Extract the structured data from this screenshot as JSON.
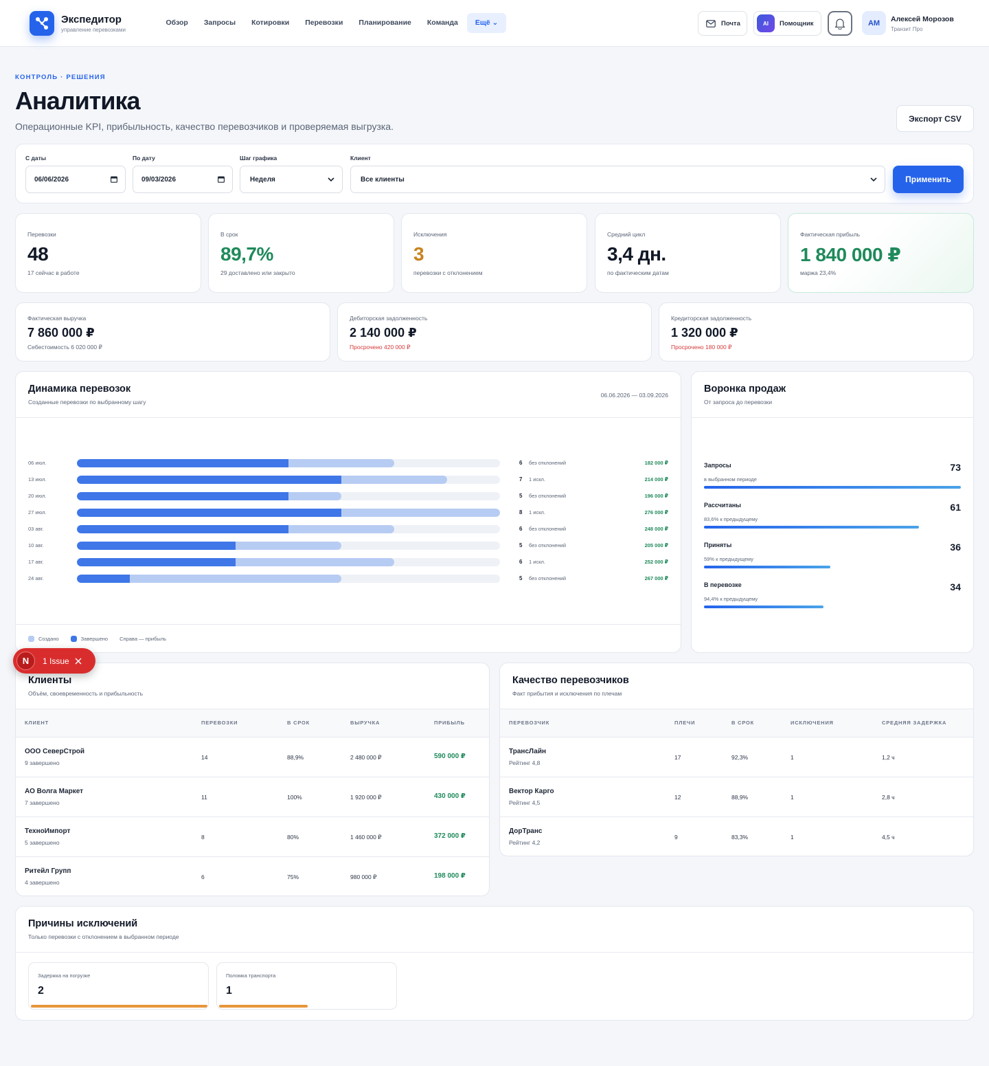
{
  "header": {
    "brand_name": "Экспедитор",
    "brand_sub": "управление перевозками",
    "nav": [
      "Обзор",
      "Запросы",
      "Котировки",
      "Перевозки",
      "Планирование",
      "Команда"
    ],
    "more_label": "Ещё ⌄",
    "mail_label": "Почта",
    "ai_badge": "AI",
    "assistant_label": "Помощник",
    "user_initials": "АМ",
    "user_name": "Алексей Морозов",
    "user_company": "Транзит Про"
  },
  "page": {
    "eyebrow": "КОНТРОЛЬ · РЕШЕНИЯ",
    "title": "Аналитика",
    "subtitle": "Операционные KPI, прибыльность, качество перевозчиков и проверяемая выгрузка.",
    "export_label": "Экспорт CSV"
  },
  "filters": {
    "from_label": "С даты",
    "from_value": "06/06/2026",
    "to_label": "По дату",
    "to_value": "09/03/2026",
    "step_label": "Шаг графика",
    "step_value": "Неделя",
    "client_label": "Клиент",
    "client_value": "Все клиенты",
    "apply_label": "Применить"
  },
  "kpis": [
    {
      "label": "Перевозки",
      "value": "48",
      "sub": "17 сейчас в работе"
    },
    {
      "label": "В срок",
      "value": "89,7%",
      "sub": "29 доставлено или закрыто"
    },
    {
      "label": "Исключения",
      "value": "3",
      "sub": "перевозки с отклонением"
    },
    {
      "label": "Средний цикл",
      "value": "3,4 дн.",
      "sub": "по фактическим датам"
    },
    {
      "label": "Фактическая прибыль",
      "value": "1 840 000 ₽",
      "sub": "маржа 23,4%"
    }
  ],
  "finance": [
    {
      "label": "Фактическая выручка",
      "value": "7 860 000 ₽",
      "sub": "Себестоимость 6 020 000 ₽"
    },
    {
      "label": "Дебиторская задолженность",
      "value": "2 140 000 ₽",
      "sub": "Просрочено 420 000 ₽"
    },
    {
      "label": "Кредиторская задолженность",
      "value": "1 320 000 ₽",
      "sub": "Просрочено 180 000 ₽"
    }
  ],
  "dynamics": {
    "title": "Динамика перевозок",
    "subtitle": "Созданные перевозки по выбранному шагу",
    "range": "06.06.2026 — 03.09.2026",
    "legend_created": "Создано",
    "legend_done": "Завершено",
    "legend_note": "Справа — прибыль"
  },
  "chart_data": {
    "type": "bar",
    "categories": [
      "06 июл.",
      "13 июл.",
      "20 июл.",
      "27 июл.",
      "03 авг.",
      "10 авг.",
      "17 авг.",
      "24 авг."
    ],
    "series": [
      {
        "name": "Создано",
        "values": [
          6,
          7,
          5,
          8,
          6,
          5,
          6,
          5
        ]
      },
      {
        "name": "Завершено",
        "values": [
          4,
          5,
          4,
          5,
          4,
          3,
          3,
          1
        ]
      }
    ],
    "row_counts": [
      "6",
      "7",
      "5",
      "8",
      "6",
      "5",
      "6",
      "5"
    ],
    "row_exceptions": [
      "без отклонений",
      "1 искл.",
      "без отклонений",
      "1 искл.",
      "без отклонений",
      "без отклонений",
      "1 искл.",
      "без отклонений"
    ],
    "row_profit": [
      "182 000 ₽",
      "214 000 ₽",
      "196 000 ₽",
      "276 000 ₽",
      "248 000 ₽",
      "205 000 ₽",
      "252 000 ₽",
      "267 000 ₽"
    ],
    "xmax": 8
  },
  "funnel": {
    "title": "Воронка продаж",
    "subtitle": "От запроса до перевозки",
    "stages": [
      {
        "name": "Запросы",
        "value": "73",
        "sub": "в выбранном периоде",
        "ratio": 1.0
      },
      {
        "name": "Рассчитаны",
        "value": "61",
        "sub": "83,6% к предыдущему",
        "ratio": 0.836
      },
      {
        "name": "Приняты",
        "value": "36",
        "sub": "59% к предыдущему",
        "ratio": 0.493
      },
      {
        "name": "В перевозке",
        "value": "34",
        "sub": "94,4% к предыдущему",
        "ratio": 0.466
      }
    ]
  },
  "clients": {
    "title": "Клиенты",
    "subtitle": "Объём, своевременность и прибыльность",
    "headers": [
      "КЛИЕНТ",
      "ПЕРЕВОЗКИ",
      "В СРОК",
      "ВЫРУЧКА",
      "ПРИБЫЛЬ"
    ],
    "rows": [
      {
        "name": "ООО СеверСтрой",
        "sub": "9 завершено",
        "count": "14",
        "ontime": "88,9%",
        "revenue": "2 480 000 ₽",
        "profit": "590 000 ₽"
      },
      {
        "name": "АО Волга Маркет",
        "sub": "7 завершено",
        "count": "11",
        "ontime": "100%",
        "revenue": "1 920 000 ₽",
        "profit": "430 000 ₽"
      },
      {
        "name": "ТехноИмпорт",
        "sub": "5 завершено",
        "count": "8",
        "ontime": "80%",
        "revenue": "1 460 000 ₽",
        "profit": "372 000 ₽"
      },
      {
        "name": "Ритейл Групп",
        "sub": "4 завершено",
        "count": "6",
        "ontime": "75%",
        "revenue": "980 000 ₽",
        "profit": "198 000 ₽"
      }
    ]
  },
  "carriers": {
    "title": "Качество перевозчиков",
    "subtitle": "Факт прибытия и исключения по плечам",
    "headers": [
      "ПЕРЕВОЗЧИК",
      "ПЛЕЧИ",
      "В СРОК",
      "ИСКЛЮЧЕНИЯ",
      "СРЕДНЯЯ ЗАДЕРЖКА"
    ],
    "rows": [
      {
        "name": "ТрансЛайн",
        "sub": "Рейтинг 4,8",
        "legs": "17",
        "ontime": "92,3%",
        "exceptions": "1",
        "delay": "1,2 ч"
      },
      {
        "name": "Вектор Карго",
        "sub": "Рейтинг 4,5",
        "legs": "12",
        "ontime": "88,9%",
        "exceptions": "1",
        "delay": "2,8 ч"
      },
      {
        "name": "ДорТранс",
        "sub": "Рейтинг 4,2",
        "legs": "9",
        "ontime": "83,3%",
        "exceptions": "1",
        "delay": "4,5 ч"
      }
    ]
  },
  "reasons": {
    "title": "Причины исключений",
    "subtitle": "Только перевозки с отклонением в выбранном периоде",
    "items": [
      {
        "label": "Задержка на погрузке",
        "value": "2",
        "ratio": 1.0
      },
      {
        "label": "Поломка транспорта",
        "value": "1",
        "ratio": 0.5
      }
    ]
  },
  "issue_badge": {
    "letter": "N",
    "label": "1 Issue"
  },
  "colors": {
    "accent": "#2563eb",
    "profit": "#1f8a5b",
    "warning": "#c9831e",
    "danger": "#d63939",
    "bar_created": "#b7ccf3",
    "bar_done": "#3f76e8"
  }
}
